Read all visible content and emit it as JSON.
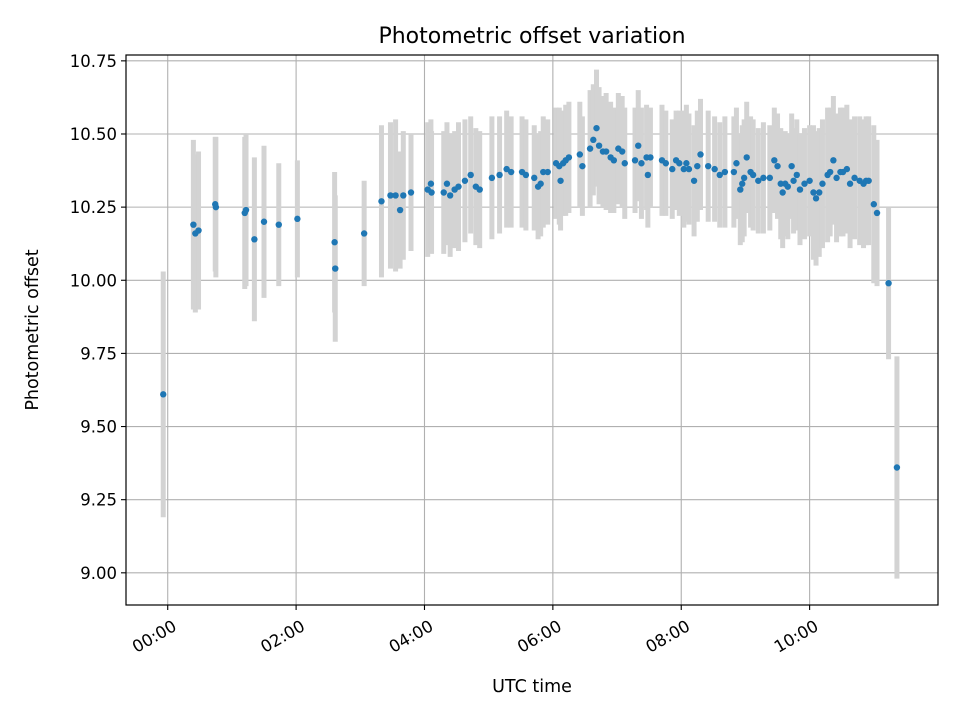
{
  "chart_data": {
    "type": "scatter",
    "title": "Photometric offset variation",
    "xlabel": "UTC time",
    "ylabel": "Photometric offset",
    "x_unit": "hours",
    "xlim": [
      -0.65,
      12.0
    ],
    "ylim": [
      8.89,
      10.77
    ],
    "x_ticks": [
      {
        "value": 0,
        "label": "00:00"
      },
      {
        "value": 2,
        "label": "02:00"
      },
      {
        "value": 4,
        "label": "04:00"
      },
      {
        "value": 6,
        "label": "06:00"
      },
      {
        "value": 8,
        "label": "08:00"
      },
      {
        "value": 10,
        "label": "10:00"
      }
    ],
    "y_ticks": [
      {
        "value": 9.0,
        "label": "9.00"
      },
      {
        "value": 9.25,
        "label": "9.25"
      },
      {
        "value": 9.5,
        "label": "9.50"
      },
      {
        "value": 9.75,
        "label": "9.75"
      },
      {
        "value": 10.0,
        "label": "10.00"
      },
      {
        "value": 10.25,
        "label": "10.25"
      },
      {
        "value": 10.5,
        "label": "10.50"
      },
      {
        "value": 10.75,
        "label": "10.75"
      }
    ],
    "grid": true,
    "colors": {
      "points": "#1f77b4",
      "errorbars": "#d3d3d3",
      "grid": "#b0b0b0"
    },
    "series": [
      {
        "points": [
          [
            -0.07,
            9.61,
            0.42
          ],
          [
            0.4,
            10.19,
            0.29
          ],
          [
            0.43,
            10.16,
            0.27
          ],
          [
            0.48,
            10.17,
            0.27
          ],
          [
            0.74,
            10.26,
            0.23
          ],
          [
            0.75,
            10.25,
            0.24
          ],
          [
            1.2,
            10.23,
            0.26
          ],
          [
            1.22,
            10.24,
            0.26
          ],
          [
            1.35,
            10.14,
            0.28
          ],
          [
            1.5,
            10.2,
            0.26
          ],
          [
            1.73,
            10.19,
            0.21
          ],
          [
            2.02,
            10.21,
            0.2
          ],
          [
            2.6,
            10.13,
            0.24
          ],
          [
            2.61,
            10.04,
            0.25
          ],
          [
            3.06,
            10.16,
            0.18
          ],
          [
            3.33,
            10.27,
            0.26
          ],
          [
            3.47,
            10.29,
            0.25
          ],
          [
            3.55,
            10.29,
            0.26
          ],
          [
            3.62,
            10.24,
            0.2
          ],
          [
            3.67,
            10.29,
            0.22
          ],
          [
            3.79,
            10.3,
            0.2
          ],
          [
            4.05,
            10.31,
            0.23
          ],
          [
            4.1,
            10.33,
            0.22
          ],
          [
            4.11,
            10.3,
            0.21
          ],
          [
            4.3,
            10.3,
            0.21
          ],
          [
            4.35,
            10.33,
            0.21
          ],
          [
            4.4,
            10.29,
            0.21
          ],
          [
            4.47,
            10.31,
            0.2
          ],
          [
            4.53,
            10.32,
            0.22
          ],
          [
            4.63,
            10.34,
            0.21
          ],
          [
            4.72,
            10.36,
            0.2
          ],
          [
            4.8,
            10.32,
            0.2
          ],
          [
            4.86,
            10.31,
            0.2
          ],
          [
            5.05,
            10.35,
            0.21
          ],
          [
            5.17,
            10.36,
            0.2
          ],
          [
            5.28,
            10.38,
            0.2
          ],
          [
            5.35,
            10.37,
            0.19
          ],
          [
            5.52,
            10.37,
            0.19
          ],
          [
            5.58,
            10.36,
            0.19
          ],
          [
            5.71,
            10.35,
            0.18
          ],
          [
            5.77,
            10.32,
            0.18
          ],
          [
            5.81,
            10.33,
            0.18
          ],
          [
            5.85,
            10.37,
            0.19
          ],
          [
            5.92,
            10.37,
            0.18
          ],
          [
            6.05,
            10.4,
            0.19
          ],
          [
            6.1,
            10.39,
            0.2
          ],
          [
            6.12,
            10.34,
            0.17
          ],
          [
            6.16,
            10.4,
            0.18
          ],
          [
            6.2,
            10.41,
            0.19
          ],
          [
            6.25,
            10.42,
            0.19
          ],
          [
            6.42,
            10.43,
            0.18
          ],
          [
            6.46,
            10.39,
            0.17
          ],
          [
            6.58,
            10.45,
            0.2
          ],
          [
            6.63,
            10.48,
            0.19
          ],
          [
            6.68,
            10.52,
            0.2
          ],
          [
            6.72,
            10.46,
            0.2
          ],
          [
            6.78,
            10.44,
            0.19
          ],
          [
            6.83,
            10.44,
            0.2
          ],
          [
            6.9,
            10.42,
            0.19
          ],
          [
            6.95,
            10.41,
            0.18
          ],
          [
            7.02,
            10.45,
            0.19
          ],
          [
            7.08,
            10.44,
            0.19
          ],
          [
            7.12,
            10.4,
            0.19
          ],
          [
            7.28,
            10.41,
            0.18
          ],
          [
            7.33,
            10.46,
            0.19
          ],
          [
            7.38,
            10.4,
            0.19
          ],
          [
            7.46,
            10.42,
            0.18
          ],
          [
            7.48,
            10.36,
            0.18
          ],
          [
            7.52,
            10.42,
            0.17
          ],
          [
            7.7,
            10.41,
            0.19
          ],
          [
            7.76,
            10.4,
            0.18
          ],
          [
            7.86,
            10.38,
            0.17
          ],
          [
            7.92,
            10.41,
            0.17
          ],
          [
            7.97,
            10.4,
            0.18
          ],
          [
            8.04,
            10.38,
            0.2
          ],
          [
            8.08,
            10.4,
            0.2
          ],
          [
            8.12,
            10.38,
            0.19
          ],
          [
            8.2,
            10.34,
            0.19
          ],
          [
            8.25,
            10.39,
            0.19
          ],
          [
            8.3,
            10.43,
            0.19
          ],
          [
            8.42,
            10.39,
            0.19
          ],
          [
            8.52,
            10.38,
            0.18
          ],
          [
            8.6,
            10.36,
            0.18
          ],
          [
            8.68,
            10.37,
            0.19
          ],
          [
            8.82,
            10.37,
            0.19
          ],
          [
            8.86,
            10.4,
            0.19
          ],
          [
            8.92,
            10.31,
            0.19
          ],
          [
            8.95,
            10.33,
            0.2
          ],
          [
            8.98,
            10.35,
            0.2
          ],
          [
            9.02,
            10.42,
            0.19
          ],
          [
            9.08,
            10.37,
            0.19
          ],
          [
            9.12,
            10.36,
            0.19
          ],
          [
            9.2,
            10.34,
            0.18
          ],
          [
            9.28,
            10.35,
            0.19
          ],
          [
            9.38,
            10.35,
            0.18
          ],
          [
            9.45,
            10.41,
            0.18
          ],
          [
            9.5,
            10.39,
            0.18
          ],
          [
            9.55,
            10.33,
            0.19
          ],
          [
            9.58,
            10.3,
            0.19
          ],
          [
            9.62,
            10.33,
            0.18
          ],
          [
            9.66,
            10.32,
            0.18
          ],
          [
            9.72,
            10.39,
            0.18
          ],
          [
            9.75,
            10.34,
            0.18
          ],
          [
            9.8,
            10.36,
            0.19
          ],
          [
            9.85,
            10.31,
            0.19
          ],
          [
            9.92,
            10.33,
            0.19
          ],
          [
            10.0,
            10.34,
            0.19
          ],
          [
            10.06,
            10.3,
            0.23
          ],
          [
            10.1,
            10.28,
            0.23
          ],
          [
            10.15,
            10.3,
            0.22
          ],
          [
            10.2,
            10.33,
            0.22
          ],
          [
            10.28,
            10.36,
            0.23
          ],
          [
            10.32,
            10.37,
            0.22
          ],
          [
            10.37,
            10.41,
            0.22
          ],
          [
            10.42,
            10.35,
            0.22
          ],
          [
            10.48,
            10.37,
            0.22
          ],
          [
            10.52,
            10.37,
            0.22
          ],
          [
            10.58,
            10.38,
            0.22
          ],
          [
            10.63,
            10.33,
            0.22
          ],
          [
            10.7,
            10.35,
            0.21
          ],
          [
            10.78,
            10.34,
            0.22
          ],
          [
            10.84,
            10.33,
            0.22
          ],
          [
            10.88,
            10.34,
            0.22
          ],
          [
            10.92,
            10.34,
            0.22
          ],
          [
            11.0,
            10.26,
            0.27
          ],
          [
            11.05,
            10.23,
            0.25
          ],
          [
            11.23,
            9.99,
            0.26
          ],
          [
            11.36,
            9.36,
            0.38
          ]
        ]
      }
    ]
  }
}
